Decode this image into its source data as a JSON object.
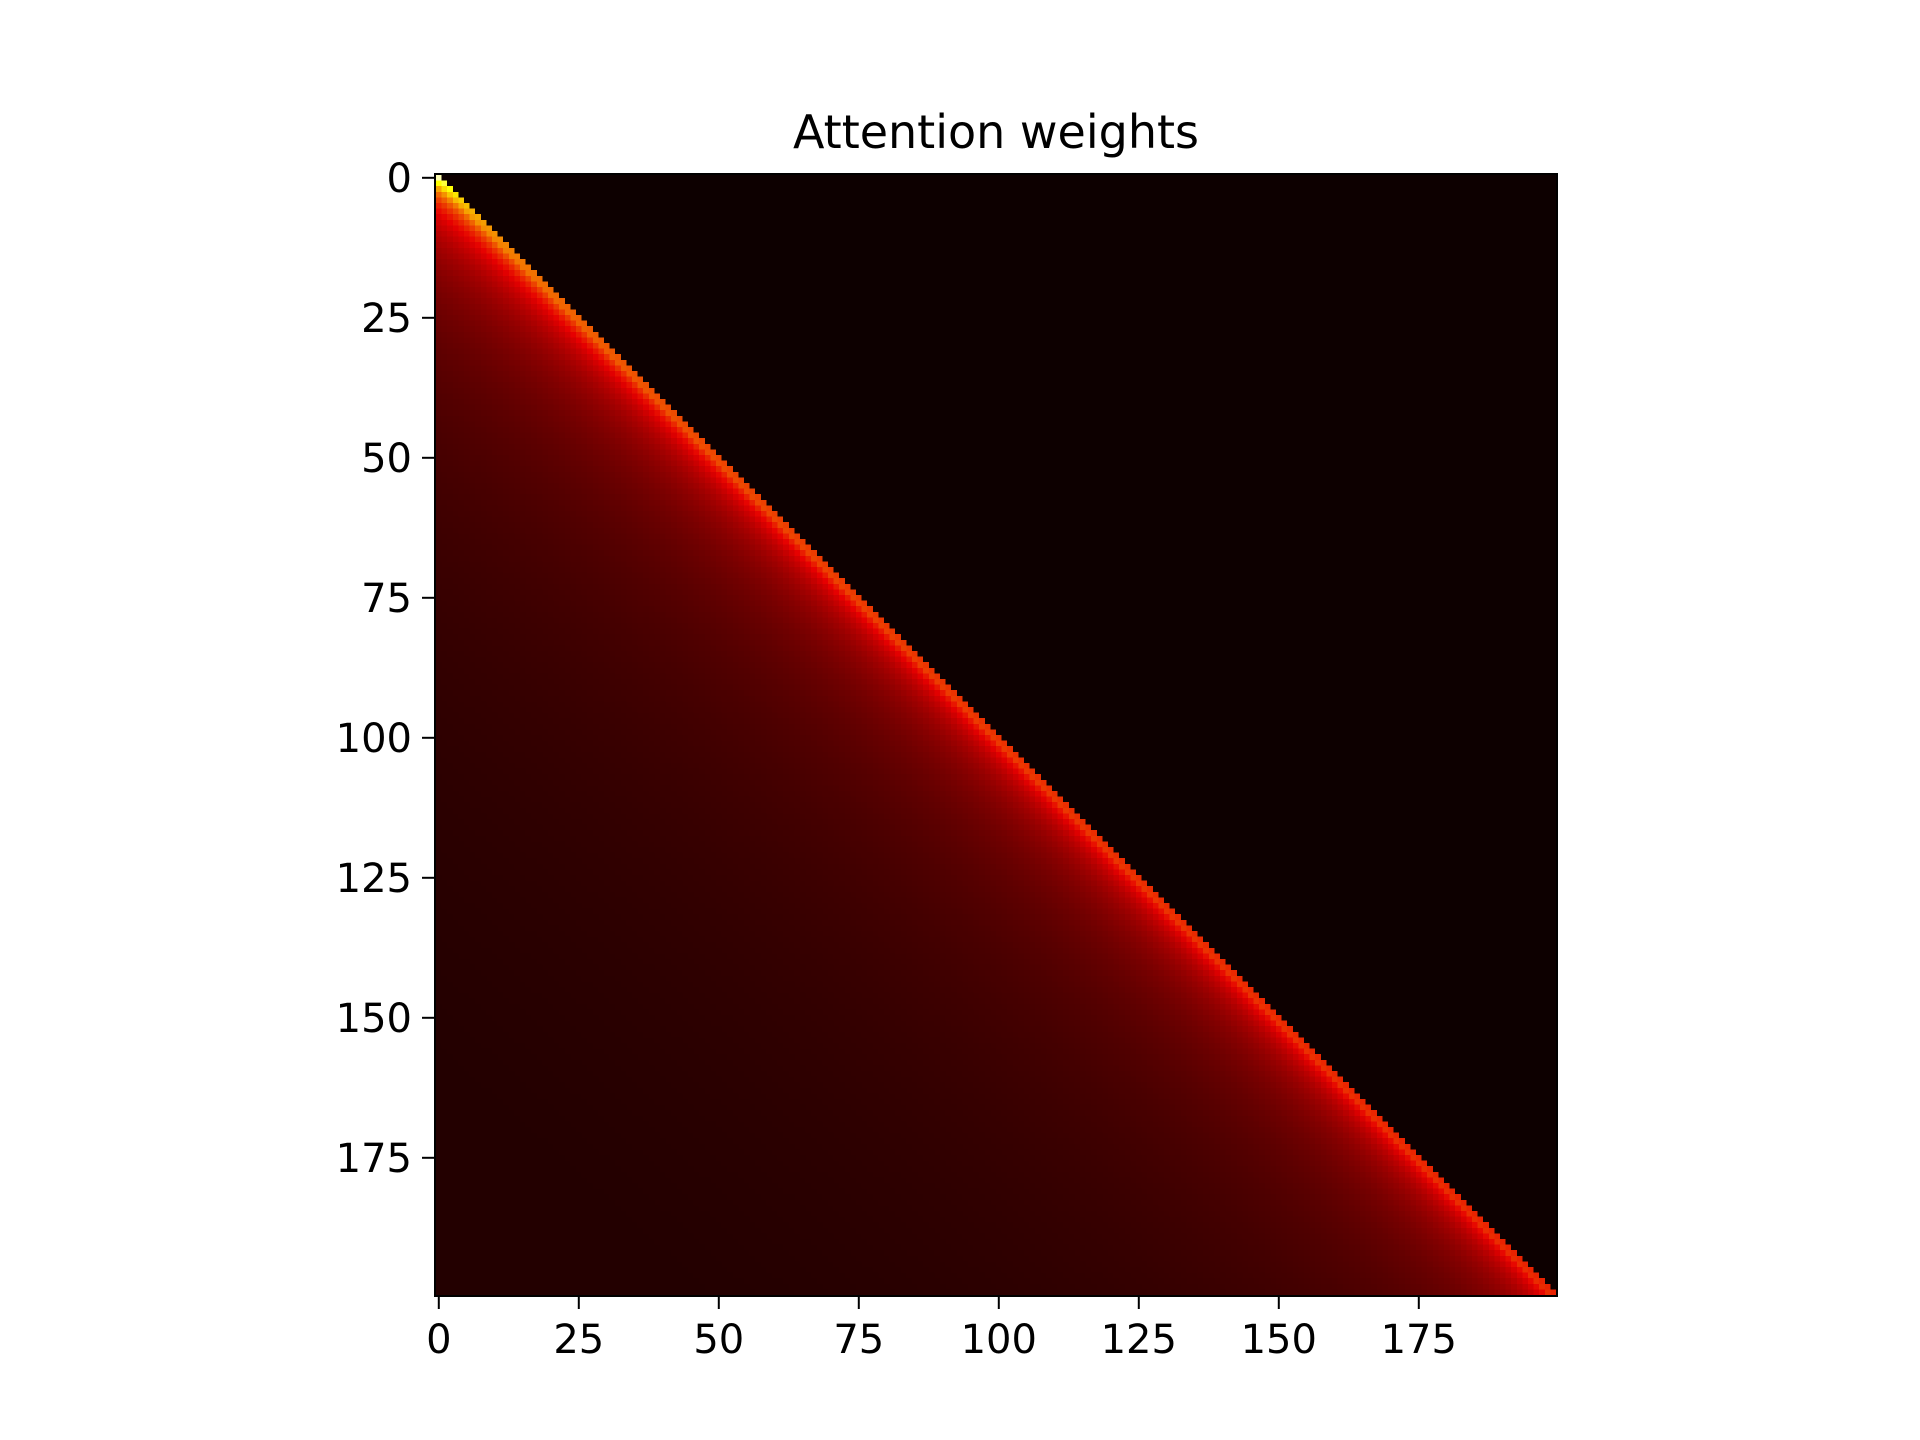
{
  "figure": {
    "background": "#ffffff"
  },
  "chart_data": {
    "type": "heatmap",
    "title": "Attention weights",
    "xlabel": "",
    "ylabel": "",
    "rows": 200,
    "cols": 200,
    "xlim": [
      0,
      199
    ],
    "ylim": [
      199,
      0
    ],
    "x_ticks": [
      0,
      25,
      50,
      75,
      100,
      125,
      150,
      175
    ],
    "y_ticks": [
      0,
      25,
      50,
      75,
      100,
      125,
      150,
      175
    ],
    "x_tick_labels": [
      "0",
      "25",
      "50",
      "75",
      "100",
      "125",
      "150",
      "175"
    ],
    "y_tick_labels": [
      "0",
      "25",
      "50",
      "75",
      "100",
      "125",
      "150",
      "175"
    ],
    "structure": "lower-triangular (causal) mask; upper triangle is near zero",
    "colormap": "hot",
    "colormap_stops": [
      "#000000",
      "#e60000",
      "#ffff00",
      "#ffffff"
    ],
    "masked_color": "#0d0000",
    "vmin": 0.0,
    "vmax": 1.0,
    "diagonal_peak_row0": 1.0,
    "diagonal_decay_exponent": 1.0,
    "grid": false,
    "legend": "none"
  }
}
